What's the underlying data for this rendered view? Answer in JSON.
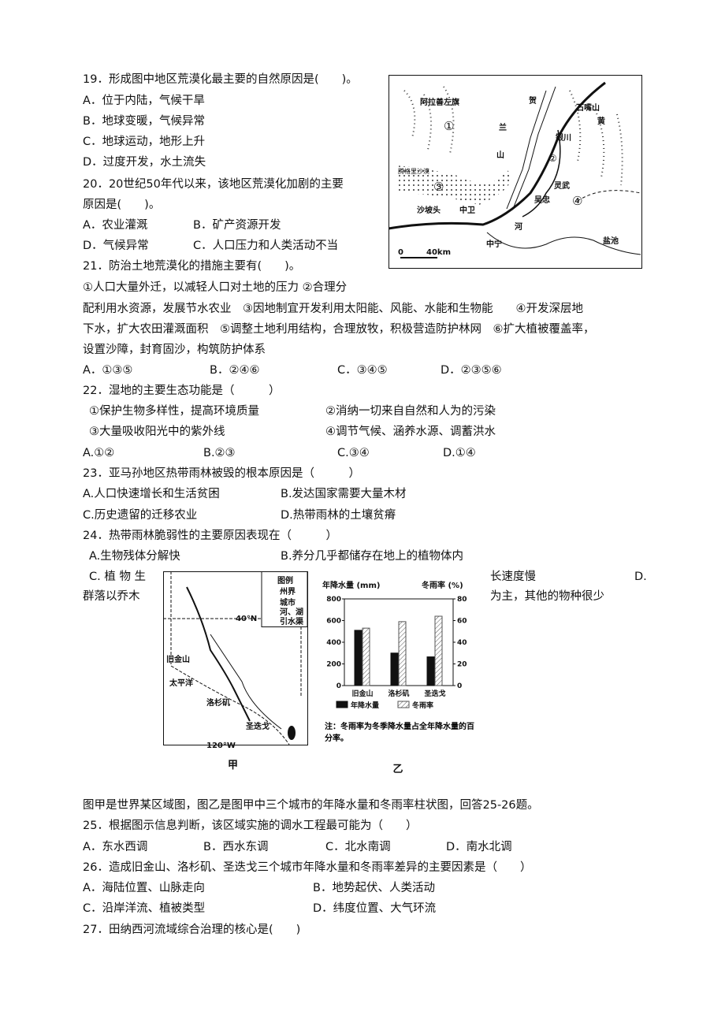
{
  "questions": [
    {
      "stem": [
        "19．形成图中地区荒漠化最主要的自然原因是(　　)。"
      ],
      "options": [
        "A．位于内陆，气候干旱",
        "B．地球变暖，气候异常",
        "C．地球运动，地形上升",
        "D．过度开发，水土流失"
      ]
    },
    {
      "stem": [
        "20．20世纪50年代以来，该地区荒漠化加剧的主要",
        "原因是(　　)。"
      ],
      "options": [
        "A．农业灌溉",
        "B．矿产资源开发",
        "D．气候异常",
        "C．人口压力和人类活动不当"
      ]
    },
    {
      "stem": [
        "21．防治土地荒漠化的措施主要有(　　)。",
        "①人口大量外迁，以减轻人口对土地的压力 ②合理分",
        "配利用水资源，发展节水农业　③因地制宜开发利用太阳能、风能、水能和生物能　　④开发深层地",
        "下水，扩大农田灌溉面积　⑤调整土地利用结构，合理放牧，积极营造防护林网　⑥扩大植被覆盖率，",
        "设置沙障，封育固沙，构筑防护体系"
      ],
      "options": [
        "A．①③⑤",
        "B．②④⑥",
        "C．③④⑤",
        "D．②③⑤⑥"
      ]
    },
    {
      "stem": [
        "22．湿地的主要生态功能是（　　　）",
        "①保护生物多样性，提高环境质量",
        "②消纳一切来自自然和人为的污染",
        "③大量吸收阳光中的紫外线",
        "④调节气候、涵养水源、调蓄洪水"
      ],
      "options": [
        "A.①②",
        "B.②③",
        "C.③④",
        "D.①④"
      ]
    },
    {
      "stem": [
        "23．亚马孙地区热带雨林被毁的根本原因是（　　　）"
      ],
      "options": [
        "A.人口快速增长和生活贫困",
        "B.发达国家需要大量木材",
        "C.历史遗留的迁移农业",
        "D.热带雨林的土壤贫瘠"
      ]
    },
    {
      "stem": [
        "24．热带雨林脆弱性的主要原因表现在（　　　）"
      ],
      "options": [
        "A.生物残体分解快",
        "B.养分几乎都储存在地上的植物体内",
        "C. 植 物 生",
        "长速度慢",
        "D.",
        "群落以乔木",
        "为主，其他的物种很少"
      ]
    },
    {
      "stem": [
        "图甲是世界某区域图，图乙是图甲中三个城市的年降水量和冬雨率柱状图，回答25-26题。",
        "25．根据图示信息判断，该区域实施的调水工程最可能为（　　）"
      ],
      "options": [
        "A．东水西调",
        "B．西水东调",
        "C．北水南调",
        "D．南水北调"
      ]
    },
    {
      "stem": [
        "26．造成旧金山、洛杉矶、圣迭戈三个城市年降水量和冬雨率差异的主要因素是（　　）"
      ],
      "options": [
        "A．海陆位置、山脉走向",
        "B．地势起伏、人类活动",
        "C．沿岸洋流、植被类型",
        "D．纬度位置、大气环流"
      ]
    },
    {
      "stem": [
        "27．田纳西河流域综合治理的核心是(　　)"
      ],
      "options": []
    }
  ],
  "map_ningxia": {
    "labels": [
      "阿拉善左旗",
      "贺",
      "石嘴山",
      "兰",
      "山",
      "银川",
      "黄",
      "腾格里沙漠",
      "沙坡头",
      "中卫",
      "灵武",
      "吴忠",
      "河",
      "中宁",
      "盐池",
      "①",
      "②",
      "③",
      "④",
      "0",
      "40km"
    ]
  },
  "map_jia": {
    "legend_title": "图例",
    "legend": [
      "州界",
      "城市",
      "河、湖",
      "引水渠"
    ],
    "labels": [
      "40°N",
      "旧金山",
      "太平洋",
      "洛杉矶",
      "圣迭戈",
      "120°W"
    ],
    "caption": "甲"
  },
  "chart_data": {
    "type": "bar",
    "categories": [
      "旧金山",
      "洛杉矶",
      "圣迭戈"
    ],
    "series": [
      {
        "name": "年降水量",
        "color": "#111111",
        "values": [
          510,
          300,
          265
        ]
      },
      {
        "name": "冬雨率",
        "color": "#555555",
        "axis": "y2",
        "values": [
          53,
          59,
          64
        ]
      }
    ],
    "ylabel": "年降水量 (mm)",
    "y2label": "冬雨率 (%)",
    "ylim": [
      0,
      800
    ],
    "yticks": [
      0,
      200,
      400,
      600,
      800
    ],
    "y2lim": [
      0,
      80
    ],
    "y2ticks": [
      0,
      20,
      40,
      60,
      80
    ],
    "note": "注：冬雨率为冬季降水量占全年降水量的百分率。",
    "caption": "乙"
  }
}
